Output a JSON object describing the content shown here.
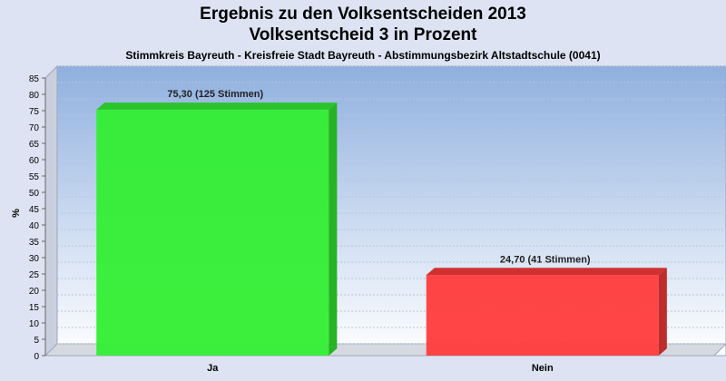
{
  "header": {
    "title_line1": "Ergebnis zu den Volksentscheiden 2013",
    "title_line2": "Volksentscheid 3 in Prozent",
    "subtitle": "Stimmkreis Bayreuth - Kreisfreie Stadt Bayreuth - Abstimmungsbezirk Altstadtschule (0041)"
  },
  "chart_data": {
    "type": "bar",
    "title": "Ergebnis zu den Volksentscheiden 2013 / Volksentscheid 3 in Prozent",
    "ylabel": "%",
    "xlabel": "",
    "ylim": [
      0,
      85
    ],
    "yticks": [
      0,
      5,
      10,
      15,
      20,
      25,
      30,
      35,
      40,
      45,
      50,
      55,
      60,
      65,
      70,
      75,
      80,
      85
    ],
    "categories": [
      "Ja",
      "Nein"
    ],
    "values": [
      75.3,
      24.7
    ],
    "data_labels": [
      "75,30 (125 Stimmen)",
      "24,70 (41 Stimmen)"
    ],
    "colors": [
      "#33ee33",
      "#ff3b3b"
    ],
    "grid": true
  }
}
